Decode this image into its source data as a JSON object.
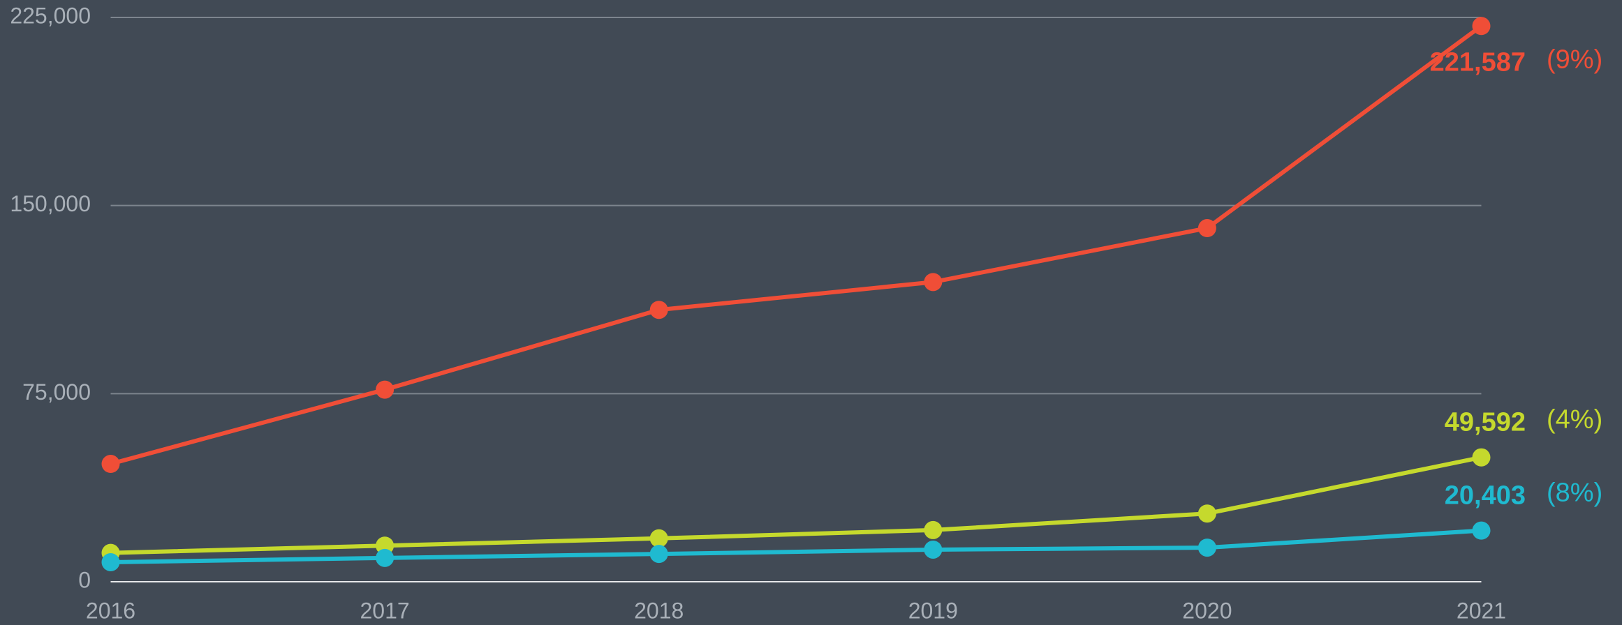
{
  "chart_data": {
    "type": "line",
    "categories": [
      "2016",
      "2017",
      "2018",
      "2019",
      "2020",
      "2021"
    ],
    "series": [
      {
        "color": "#f04e37",
        "values": [
          47000,
          76600,
          108400,
          119500,
          141000,
          221587
        ],
        "value_labels": [
          null,
          null,
          null,
          null,
          null,
          "221,587"
        ],
        "change_label": "(9%)"
      },
      {
        "color": "#c5d92d",
        "values": [
          11500,
          14400,
          17300,
          20600,
          27200,
          49592
        ],
        "value_labels": [
          null,
          null,
          null,
          null,
          null,
          "49,592"
        ],
        "change_label": "(4%)"
      },
      {
        "color": "#1fbad0",
        "values": [
          7800,
          9500,
          11100,
          12800,
          13600,
          20403
        ],
        "value_labels": [
          null,
          null,
          null,
          null,
          null,
          "20,403"
        ],
        "change_label": "(8%)"
      }
    ],
    "ylim": [
      0,
      225000
    ],
    "yticks": [
      0,
      {
        "value": 75000,
        "label": "75,000"
      },
      {
        "value": 150000,
        "label": "150,000"
      },
      {
        "value": 225000,
        "label": "225,000"
      }
    ],
    "grid": true
  }
}
